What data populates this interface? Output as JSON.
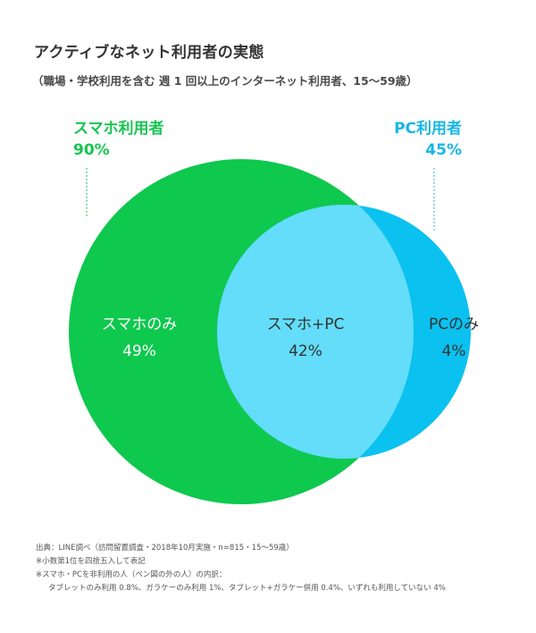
{
  "title": "アクティブなネット利用者の実態",
  "subtitle": "（職場・学校利用を含む 週 1 回以上のインターネット利用者、15〜59歳）",
  "sets": {
    "smartphone": {
      "label": "スマホ利用者",
      "percent": "90%"
    },
    "pc": {
      "label": "PC利用者",
      "percent": "45%"
    }
  },
  "regions": {
    "smartphone_only": {
      "label": "スマホのみ",
      "percent": "49%"
    },
    "both": {
      "label": "スマホ+PC",
      "percent": "42%"
    },
    "pc_only": {
      "label": "PCのみ",
      "percent": "4%"
    }
  },
  "colors": {
    "smartphone": "#0fc84e",
    "overlap": "#63ddf9",
    "pc": "#0bc1f0"
  },
  "notes": {
    "source": "出典：LINE調べ（訪問留置調査・2018年10月実施・n=815・15〜59歳）",
    "rounding": "※小数第1位を四捨五入して表記",
    "breakdown_head": "※スマホ・PCを非利用の人（ベン図の外の人）の内訳：",
    "breakdown_body": "タブレットのみ利用 0.8%、ガラケーのみ利用 1%、タブレット+ガラケー併用 0.4%、いずれも利用していない 4%"
  }
}
